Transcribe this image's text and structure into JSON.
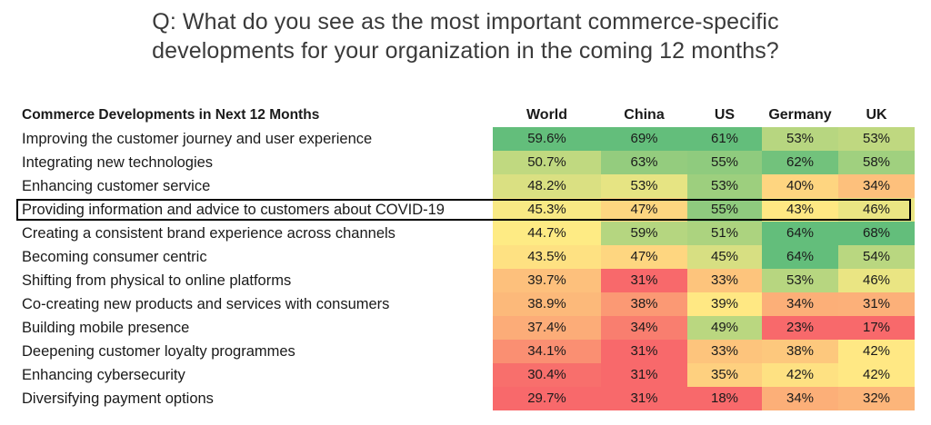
{
  "title_lines": [
    "Q: What do you see as the most important commerce-specific",
    "developments for your organization in the coming 12 months?"
  ],
  "highlight_row_index": 3,
  "chart_data": {
    "type": "heatmap",
    "title": "Q: What do you see as the most important commerce-specific developments for your organization in the coming 12 months?",
    "row_header": "Commerce Developments in Next 12 Months",
    "columns": [
      "World",
      "China",
      "US",
      "Germany",
      "UK"
    ],
    "rows": [
      {
        "label": "Improving the customer journey and user experience",
        "values": [
          "59.6%",
          "69%",
          "61%",
          "53%",
          "53%"
        ]
      },
      {
        "label": "Integrating new technologies",
        "values": [
          "50.7%",
          "63%",
          "55%",
          "62%",
          "58%"
        ]
      },
      {
        "label": "Enhancing customer service",
        "values": [
          "48.2%",
          "53%",
          "53%",
          "40%",
          "34%"
        ]
      },
      {
        "label": "Providing information and advice to customers about COVID-19",
        "values": [
          "45.3%",
          "47%",
          "55%",
          "43%",
          "46%"
        ]
      },
      {
        "label": "Creating a consistent brand experience across channels",
        "values": [
          "44.7%",
          "59%",
          "51%",
          "64%",
          "68%"
        ]
      },
      {
        "label": "Becoming consumer centric",
        "values": [
          "43.5%",
          "47%",
          "45%",
          "64%",
          "54%"
        ]
      },
      {
        "label": "Shifting from physical to online platforms",
        "values": [
          "39.7%",
          "31%",
          "33%",
          "53%",
          "46%"
        ]
      },
      {
        "label": "Co-creating new products and services with consumers",
        "values": [
          "38.9%",
          "38%",
          "39%",
          "34%",
          "31%"
        ]
      },
      {
        "label": "Building mobile presence",
        "values": [
          "37.4%",
          "34%",
          "49%",
          "23%",
          "17%"
        ]
      },
      {
        "label": "Deepening customer loyalty programmes",
        "values": [
          "34.1%",
          "31%",
          "33%",
          "38%",
          "42%"
        ]
      },
      {
        "label": "Enhancing cybersecurity",
        "values": [
          "30.4%",
          "31%",
          "35%",
          "42%",
          "42%"
        ]
      },
      {
        "label": "Diversifying payment options",
        "values": [
          "29.7%",
          "31%",
          "18%",
          "34%",
          "32%"
        ]
      }
    ]
  }
}
